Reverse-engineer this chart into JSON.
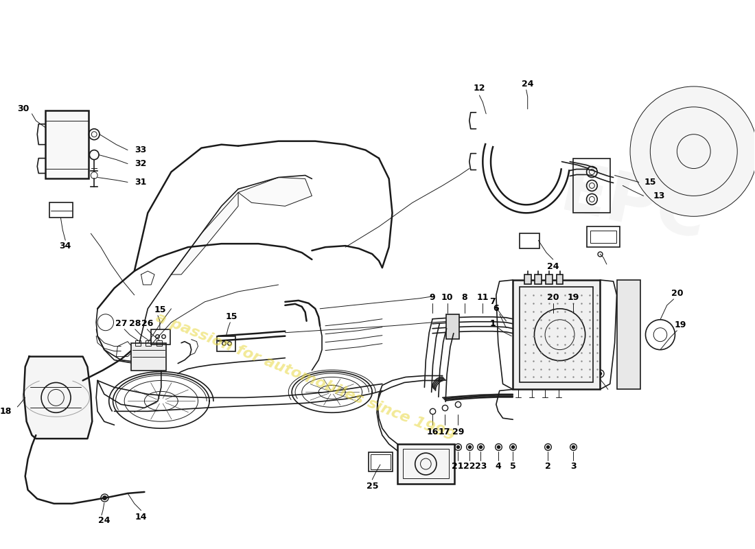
{
  "bg_color": "#ffffff",
  "line_color": "#1a1a1a",
  "watermark_text": "a passion for automobiles since 1999",
  "watermark_color": "#e8d840",
  "watermark_alpha": 0.55,
  "figsize": [
    11.0,
    8.0
  ],
  "dpi": 100
}
